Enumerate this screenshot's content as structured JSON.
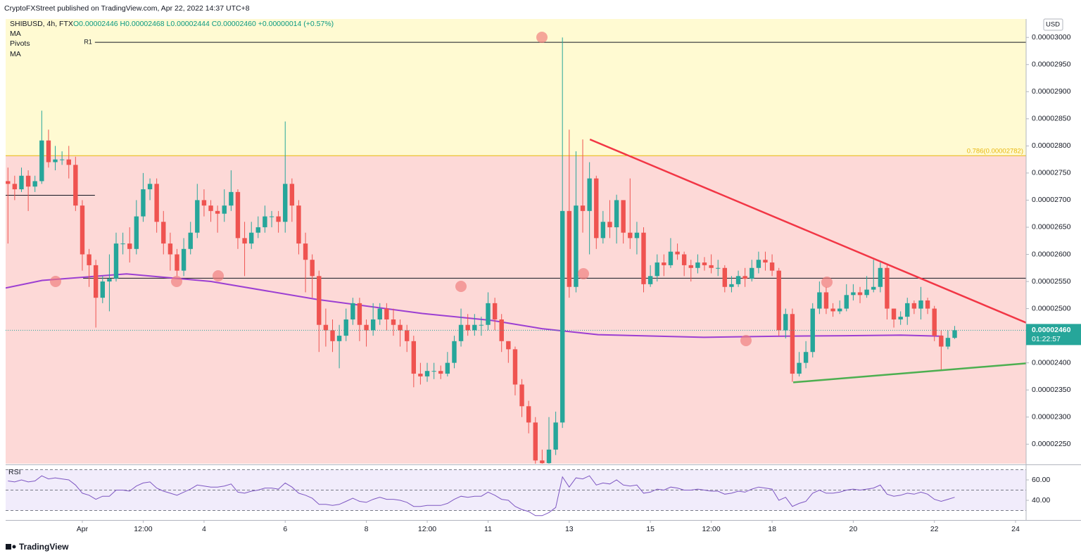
{
  "chart_data": {
    "type": "candlestick",
    "published": "CryptoFXStreet published on TradingView.com, Apr 22, 2022 14:37 UTC+8",
    "symbol": "SHIBUSD, 4h, FTX",
    "ohlc": "O0.00002446 H0.00002468 L0.00002444 C0.00002460 +0.00000014 (+0.57%)",
    "indicators": [
      "MA",
      "Pivots",
      "MA"
    ],
    "currency": "USD",
    "last_label": "0.00002460",
    "countdown": "01:22:57",
    "brand": "TradingView",
    "up_color": "#26a69a",
    "down_color": "#ef5350",
    "grid": false,
    "xlim": [
      -0.89,
      24.26
    ],
    "xticks": [
      {
        "value": 1,
        "label": "Apr"
      },
      {
        "value": 2.5,
        "label": "12:00"
      },
      4,
      6,
      8,
      {
        "value": 9.5,
        "label": "12:00"
      },
      11,
      13,
      15,
      {
        "value": 16.5,
        "label": "12:00"
      },
      18,
      20,
      22,
      24
    ],
    "ylim": [
      2.214e-05,
      3.034e-05
    ],
    "yticks": [
      {
        "value": 3e-05,
        "label": "0.00003000"
      },
      {
        "value": 2.95e-05,
        "label": "0.00002950"
      },
      {
        "value": 2.9e-05,
        "label": "0.00002900"
      },
      {
        "value": 2.85e-05,
        "label": "0.00002850"
      },
      {
        "value": 2.8e-05,
        "label": "0.00002800"
      },
      {
        "value": 2.75e-05,
        "label": "0.00002750"
      },
      {
        "value": 2.7e-05,
        "label": "0.00002700"
      },
      {
        "value": 2.65e-05,
        "label": "0.00002650"
      },
      {
        "value": 2.6e-05,
        "label": "0.00002600"
      },
      {
        "value": 2.55e-05,
        "label": "0.00002550"
      },
      {
        "value": 2.5e-05,
        "label": "0.00002500"
      },
      {
        "value": 2.45e-05,
        "label": "0.00002450"
      },
      {
        "value": 2.4e-05,
        "label": "0.00002400"
      },
      {
        "value": 2.35e-05,
        "label": "0.00002350"
      },
      {
        "value": 2.3e-05,
        "label": "0.00002300"
      },
      {
        "value": 2.25e-05,
        "label": "0.00002250"
      }
    ],
    "x": [
      -0.833,
      -0.667,
      -0.5,
      -0.333,
      -0.167,
      0,
      0.167,
      0.333,
      0.5,
      0.667,
      0.833,
      1,
      1.167,
      1.333,
      1.5,
      1.667,
      1.833,
      2,
      2.167,
      2.333,
      2.5,
      2.667,
      2.833,
      3,
      3.167,
      3.333,
      3.5,
      3.667,
      3.833,
      4,
      4.167,
      4.333,
      4.5,
      4.667,
      4.833,
      5,
      5.167,
      5.333,
      5.5,
      5.667,
      5.833,
      6,
      6.167,
      6.333,
      6.5,
      6.667,
      6.833,
      7,
      7.167,
      7.333,
      7.5,
      7.667,
      7.833,
      8,
      8.167,
      8.333,
      8.5,
      8.667,
      8.833,
      9,
      9.167,
      9.333,
      9.5,
      9.667,
      9.833,
      10,
      10.167,
      10.333,
      10.5,
      10.667,
      10.833,
      11,
      11.167,
      11.333,
      11.5,
      11.667,
      11.833,
      12,
      12.167,
      12.333,
      12.5,
      12.667,
      12.833,
      13,
      13.167,
      13.333,
      13.5,
      13.667,
      13.833,
      14,
      14.167,
      14.333,
      14.5,
      14.667,
      14.833,
      15,
      15.167,
      15.333,
      15.5,
      15.667,
      15.833,
      16,
      16.167,
      16.333,
      16.5,
      16.667,
      16.833,
      17,
      17.167,
      17.333,
      17.5,
      17.667,
      17.833,
      18,
      18.167,
      18.333,
      18.5,
      18.667,
      18.833,
      19,
      19.167,
      19.333,
      19.5,
      19.667,
      19.833,
      20,
      20.167,
      20.333,
      20.5,
      20.667,
      20.833,
      21,
      21.167,
      21.333,
      21.5,
      21.667,
      21.833,
      22,
      22.167,
      22.333,
      22.5
    ],
    "open": [
      2.735e-05,
      2.73e-05,
      2.72e-05,
      2.745e-05,
      2.725e-05,
      2.735e-05,
      2.81e-05,
      2.77e-05,
      2.775e-05,
      2.775e-05,
      2.765e-05,
      2.69e-05,
      2.6e-05,
      2.58e-05,
      2.52e-05,
      2.55e-05,
      2.555e-05,
      2.62e-05,
      2.62e-05,
      2.61e-05,
      2.67e-05,
      2.72e-05,
      2.73e-05,
      2.66e-05,
      2.62e-05,
      2.6e-05,
      2.57e-05,
      2.61e-05,
      2.64e-05,
      2.7e-05,
      2.69e-05,
      2.68e-05,
      2.675e-05,
      2.69e-05,
      2.715e-05,
      2.63e-05,
      2.62e-05,
      2.64e-05,
      2.65e-05,
      2.67e-05,
      2.67e-05,
      2.66e-05,
      2.73e-05,
      2.69e-05,
      2.62e-05,
      2.59e-05,
      2.56e-05,
      2.47e-05,
      2.46e-05,
      2.44e-05,
      2.45e-05,
      2.48e-05,
      2.51e-05,
      2.47e-05,
      2.46e-05,
      2.48e-05,
      2.5e-05,
      2.48e-05,
      2.47e-05,
      2.46e-05,
      2.44e-05,
      2.38e-05,
      2.375e-05,
      2.385e-05,
      2.385e-05,
      2.38e-05,
      2.4e-05,
      2.44e-05,
      2.47e-05,
      2.46e-05,
      2.47e-05,
      2.47e-05,
      2.51e-05,
      2.48e-05,
      2.44e-05,
      2.425e-05,
      2.36e-05,
      2.32e-05,
      2.29e-05,
      2.22e-05,
      2.215e-05,
      2.24e-05,
      2.29e-05,
      2.68e-05,
      2.54e-05,
      2.69e-05,
      2.68e-05,
      2.74e-05,
      2.63e-05,
      2.66e-05,
      2.65e-05,
      2.7e-05,
      2.64e-05,
      2.63e-05,
      2.64e-05,
      2.545e-05,
      2.56e-05,
      2.585e-05,
      2.58e-05,
      2.605e-05,
      2.6e-05,
      2.58e-05,
      2.575e-05,
      2.585e-05,
      2.58e-05,
      2.575e-05,
      2.575e-05,
      2.54e-05,
      2.545e-05,
      2.56e-05,
      2.555e-05,
      2.575e-05,
      2.59e-05,
      2.585e-05,
      2.57e-05,
      2.46e-05,
      2.49e-05,
      2.38e-05,
      2.4e-05,
      2.42e-05,
      2.5e-05,
      2.53e-05,
      2.5e-05,
      2.495e-05,
      2.5e-05,
      2.525e-05,
      2.53e-05,
      2.525e-05,
      2.535e-05,
      2.54e-05,
      2.575e-05,
      2.5e-05,
      2.48e-05,
      2.485e-05,
      2.51e-05,
      2.5e-05,
      2.515e-05,
      2.5e-05,
      2.45e-05,
      2.43e-05,
      2.446e-05
    ],
    "high": [
      2.76e-05,
      2.745e-05,
      2.76e-05,
      2.755e-05,
      2.745e-05,
      2.865e-05,
      2.83e-05,
      2.8e-05,
      2.79e-05,
      2.8e-05,
      2.78e-05,
      2.7e-05,
      2.61e-05,
      2.59e-05,
      2.56e-05,
      2.6e-05,
      2.64e-05,
      2.64e-05,
      2.65e-05,
      2.7e-05,
      2.75e-05,
      2.74e-05,
      2.74e-05,
      2.68e-05,
      2.64e-05,
      2.61e-05,
      2.63e-05,
      2.66e-05,
      2.73e-05,
      2.72e-05,
      2.7e-05,
      2.69e-05,
      2.72e-05,
      2.755e-05,
      2.72e-05,
      2.66e-05,
      2.66e-05,
      2.67e-05,
      2.69e-05,
      2.68e-05,
      2.68e-05,
      2.845e-05,
      2.74e-05,
      2.7e-05,
      2.64e-05,
      2.6e-05,
      2.57e-05,
      2.5e-05,
      2.48e-05,
      2.47e-05,
      2.5e-05,
      2.52e-05,
      2.52e-05,
      2.48e-05,
      2.51e-05,
      2.51e-05,
      2.51e-05,
      2.5e-05,
      2.48e-05,
      2.47e-05,
      2.45e-05,
      2.4e-05,
      2.4e-05,
      2.4e-05,
      2.395e-05,
      2.42e-05,
      2.45e-05,
      2.5e-05,
      2.49e-05,
      2.49e-05,
      2.485e-05,
      2.53e-05,
      2.52e-05,
      2.49e-05,
      2.44e-05,
      2.43e-05,
      2.37e-05,
      2.33e-05,
      2.3e-05,
      2.24e-05,
      2.3e-05,
      2.31e-05,
      3e-05,
      2.83e-05,
      2.79e-05,
      2.812e-05,
      2.77e-05,
      2.745e-05,
      2.68e-05,
      2.7e-05,
      2.71e-05,
      2.7e-05,
      2.74e-05,
      2.66e-05,
      2.65e-05,
      2.58e-05,
      2.6e-05,
      2.6e-05,
      2.63e-05,
      2.62e-05,
      2.605e-05,
      2.59e-05,
      2.6e-05,
      2.595e-05,
      2.6e-05,
      2.59e-05,
      2.58e-05,
      2.56e-05,
      2.57e-05,
      2.575e-05,
      2.59e-05,
      2.605e-05,
      2.605e-05,
      2.6e-05,
      2.575e-05,
      2.5e-05,
      2.5e-05,
      2.42e-05,
      2.44e-05,
      2.51e-05,
      2.55e-05,
      2.54e-05,
      2.51e-05,
      2.515e-05,
      2.545e-05,
      2.545e-05,
      2.54e-05,
      2.56e-05,
      2.59e-05,
      2.585e-05,
      2.58e-05,
      2.5e-05,
      2.495e-05,
      2.52e-05,
      2.515e-05,
      2.54e-05,
      2.52e-05,
      2.505e-05,
      2.46e-05,
      2.46e-05,
      2.468e-05
    ],
    "low": [
      2.62e-05,
      2.7e-05,
      2.715e-05,
      2.68e-05,
      2.715e-05,
      2.73e-05,
      2.76e-05,
      2.755e-05,
      2.765e-05,
      2.74e-05,
      2.68e-05,
      2.57e-05,
      2.54e-05,
      2.465e-05,
      2.51e-05,
      2.495e-05,
      2.55e-05,
      2.6e-05,
      2.585e-05,
      2.6e-05,
      2.66e-05,
      2.7e-05,
      2.64e-05,
      2.6e-05,
      2.57e-05,
      2.56e-05,
      2.56e-05,
      2.6e-05,
      2.63e-05,
      2.67e-05,
      2.66e-05,
      2.64e-05,
      2.66e-05,
      2.68e-05,
      2.61e-05,
      2.56e-05,
      2.61e-05,
      2.63e-05,
      2.64e-05,
      2.65e-05,
      2.64e-05,
      2.64e-05,
      2.66e-05,
      2.6e-05,
      2.53e-05,
      2.52e-05,
      2.42e-05,
      2.43e-05,
      2.42e-05,
      2.39e-05,
      2.44e-05,
      2.47e-05,
      2.44e-05,
      2.43e-05,
      2.45e-05,
      2.47e-05,
      2.46e-05,
      2.45e-05,
      2.43e-05,
      2.42e-05,
      2.355e-05,
      2.36e-05,
      2.365e-05,
      2.37e-05,
      2.37e-05,
      2.375e-05,
      2.39e-05,
      2.43e-05,
      2.45e-05,
      2.45e-05,
      2.45e-05,
      2.46e-05,
      2.46e-05,
      2.42e-05,
      2.4e-05,
      2.34e-05,
      2.3e-05,
      2.27e-05,
      2.214e-05,
      2.214e-05,
      2.214e-05,
      2.23e-05,
      2.28e-05,
      2.52e-05,
      2.53e-05,
      2.64e-05,
      2.6e-05,
      2.61e-05,
      2.62e-05,
      2.63e-05,
      2.62e-05,
      2.62e-05,
      2.61e-05,
      2.6e-05,
      2.53e-05,
      2.54e-05,
      2.55e-05,
      2.56e-05,
      2.575e-05,
      2.59e-05,
      2.56e-05,
      2.55e-05,
      2.565e-05,
      2.57e-05,
      2.565e-05,
      2.56e-05,
      2.53e-05,
      2.53e-05,
      2.54e-05,
      2.54e-05,
      2.55e-05,
      2.565e-05,
      2.57e-05,
      2.56e-05,
      2.45e-05,
      2.445e-05,
      2.365e-05,
      2.375e-05,
      2.39e-05,
      2.41e-05,
      2.49e-05,
      2.49e-05,
      2.485e-05,
      2.49e-05,
      2.495e-05,
      2.515e-05,
      2.51e-05,
      2.52e-05,
      2.53e-05,
      2.53e-05,
      2.48e-05,
      2.465e-05,
      2.47e-05,
      2.47e-05,
      2.49e-05,
      2.48e-05,
      2.49e-05,
      2.44e-05,
      2.385e-05,
      2.425e-05,
      2.444e-05
    ],
    "close": [
      2.73e-05,
      2.72e-05,
      2.745e-05,
      2.725e-05,
      2.735e-05,
      2.81e-05,
      2.77e-05,
      2.775e-05,
      2.775e-05,
      2.765e-05,
      2.69e-05,
      2.6e-05,
      2.58e-05,
      2.52e-05,
      2.55e-05,
      2.555e-05,
      2.62e-05,
      2.62e-05,
      2.61e-05,
      2.67e-05,
      2.72e-05,
      2.73e-05,
      2.66e-05,
      2.62e-05,
      2.6e-05,
      2.57e-05,
      2.61e-05,
      2.64e-05,
      2.7e-05,
      2.69e-05,
      2.68e-05,
      2.675e-05,
      2.69e-05,
      2.715e-05,
      2.63e-05,
      2.62e-05,
      2.64e-05,
      2.65e-05,
      2.67e-05,
      2.67e-05,
      2.66e-05,
      2.73e-05,
      2.69e-05,
      2.62e-05,
      2.59e-05,
      2.56e-05,
      2.47e-05,
      2.46e-05,
      2.44e-05,
      2.45e-05,
      2.48e-05,
      2.51e-05,
      2.47e-05,
      2.46e-05,
      2.48e-05,
      2.5e-05,
      2.48e-05,
      2.47e-05,
      2.46e-05,
      2.44e-05,
      2.38e-05,
      2.375e-05,
      2.385e-05,
      2.385e-05,
      2.38e-05,
      2.4e-05,
      2.44e-05,
      2.47e-05,
      2.46e-05,
      2.47e-05,
      2.47e-05,
      2.51e-05,
      2.48e-05,
      2.44e-05,
      2.425e-05,
      2.36e-05,
      2.32e-05,
      2.29e-05,
      2.22e-05,
      2.215e-05,
      2.24e-05,
      2.29e-05,
      2.68e-05,
      2.54e-05,
      2.69e-05,
      2.68e-05,
      2.74e-05,
      2.63e-05,
      2.66e-05,
      2.65e-05,
      2.7e-05,
      2.64e-05,
      2.63e-05,
      2.64e-05,
      2.545e-05,
      2.56e-05,
      2.585e-05,
      2.58e-05,
      2.605e-05,
      2.6e-05,
      2.58e-05,
      2.575e-05,
      2.585e-05,
      2.58e-05,
      2.575e-05,
      2.575e-05,
      2.54e-05,
      2.545e-05,
      2.56e-05,
      2.555e-05,
      2.575e-05,
      2.59e-05,
      2.585e-05,
      2.57e-05,
      2.46e-05,
      2.49e-05,
      2.38e-05,
      2.4e-05,
      2.42e-05,
      2.5e-05,
      2.53e-05,
      2.5e-05,
      2.495e-05,
      2.5e-05,
      2.525e-05,
      2.53e-05,
      2.525e-05,
      2.535e-05,
      2.54e-05,
      2.575e-05,
      2.5e-05,
      2.48e-05,
      2.485e-05,
      2.51e-05,
      2.5e-05,
      2.515e-05,
      2.5e-05,
      2.45e-05,
      2.43e-05,
      2.446e-05,
      2.46e-05
    ],
    "zones": {
      "fib": {
        "label": "0.786(0.00002782)",
        "value": 2.782e-05,
        "color": "#e8b70c"
      },
      "above_color": "#fffad2",
      "below_color": "#fdd9d7"
    },
    "levels": [
      {
        "label": "R1",
        "value": 2.991e-05,
        "x": [
          1.31,
          24.26
        ],
        "color": "#131722"
      },
      {
        "value": 2.556e-05,
        "x": [
          1.02,
          24.26
        ],
        "color": "#131722"
      },
      {
        "value": 2.709e-05,
        "x": [
          -0.89,
          1.31
        ],
        "color": "#131722"
      }
    ],
    "ma": {
      "color": "#9c3fd2",
      "x": [
        -0.89,
        0.01,
        2.09,
        4.17,
        6.78,
        9.38,
        11.11,
        12.33,
        13.71,
        16.32,
        18.05,
        19.79,
        21.17,
        22.21
      ],
      "values": [
        2.538e-05,
        2.552e-05,
        2.564e-05,
        2.55e-05,
        2.517e-05,
        2.491e-05,
        2.478e-05,
        2.463e-05,
        2.452e-05,
        2.447e-05,
        2.449e-05,
        2.45e-05,
        2.451e-05,
        2.449e-05
      ]
    },
    "trendlines": [
      {
        "color": "#f23645",
        "x": [
          13.51,
          24.26
        ],
        "values": [
          2.812e-05,
          2.474e-05
        ]
      },
      {
        "color": "#4caf50",
        "x": [
          18.52,
          24.26
        ],
        "values": [
          2.364e-05,
          2.399e-05
        ]
      }
    ],
    "rsi": {
      "label": "RSI",
      "color": "#7e57c2",
      "ylim": [
        21.4,
        73.8
      ],
      "yticks": [
        {
          "value": 60,
          "label": "60.00"
        },
        {
          "value": 40,
          "label": "40.00"
        }
      ],
      "levels": [
        70,
        50,
        30
      ],
      "values": [
        59,
        58,
        60,
        58,
        59,
        64,
        61,
        62,
        61,
        60,
        55,
        47,
        45,
        41,
        44,
        44,
        50,
        50,
        49,
        54,
        57,
        58,
        52,
        49,
        47,
        45,
        48,
        51,
        55,
        54,
        53,
        53,
        54,
        56,
        48,
        47,
        49,
        50,
        52,
        52,
        51,
        57,
        53,
        47,
        45,
        42,
        36,
        36,
        35,
        36,
        39,
        42,
        39,
        38,
        41,
        43,
        41,
        41,
        40,
        38,
        34,
        34,
        35,
        35,
        35,
        37,
        41,
        44,
        43,
        44,
        44,
        48,
        45,
        41,
        40,
        34,
        31,
        29,
        25,
        25,
        28,
        33,
        63,
        53,
        62,
        61,
        64,
        55,
        57,
        56,
        60,
        55,
        54,
        55,
        47,
        48,
        51,
        50,
        53,
        52,
        50,
        50,
        51,
        50,
        49,
        49,
        46,
        47,
        49,
        48,
        51,
        53,
        52,
        51,
        40,
        43,
        34,
        37,
        39,
        47,
        50,
        47,
        47,
        48,
        50,
        51,
        50,
        51,
        52,
        55,
        46,
        44,
        45,
        47,
        46,
        48,
        46,
        41,
        39,
        41,
        43
      ]
    }
  }
}
